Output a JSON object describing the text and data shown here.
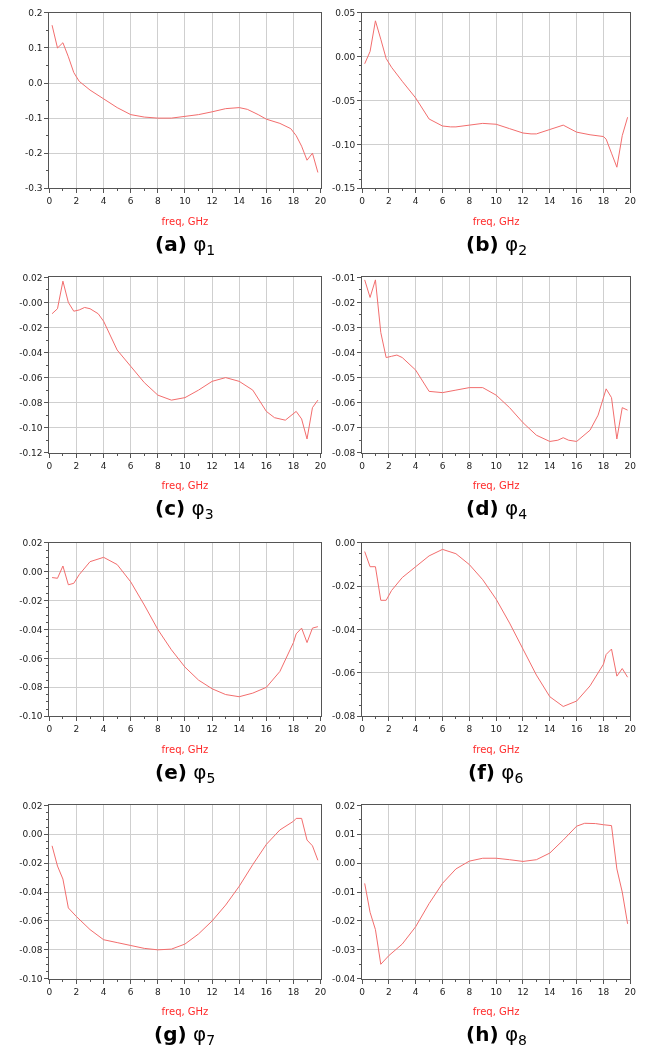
{
  "chart_data": [
    {
      "type": "line",
      "title": "(a) φ$_{1}$",
      "xlabel": "freq, GHz",
      "color": "#f26d6d",
      "grid": true,
      "marker": "none",
      "line_style": "solid",
      "x": [
        0.2,
        0.6,
        1.0,
        1.4,
        1.8,
        2.2,
        3,
        4,
        5,
        6,
        7,
        8,
        9,
        10,
        11,
        12,
        13,
        14,
        14.6,
        15.4,
        16,
        17,
        17.8,
        18.2,
        18.6,
        19.0,
        19.4,
        19.8
      ],
      "values": [
        0.165,
        0.1,
        0.115,
        0.075,
        0.03,
        0.005,
        -0.02,
        -0.045,
        -0.07,
        -0.09,
        -0.097,
        -0.1,
        -0.1,
        -0.095,
        -0.09,
        -0.082,
        -0.073,
        -0.07,
        -0.075,
        -0.09,
        -0.103,
        -0.115,
        -0.13,
        -0.15,
        -0.18,
        -0.22,
        -0.2,
        -0.255
      ],
      "xlim": [
        0,
        20
      ],
      "xticks": [
        0,
        2,
        4,
        6,
        8,
        10,
        12,
        14,
        16,
        18,
        20
      ],
      "ylim": [
        -0.3,
        0.2
      ],
      "yticks": [
        {
          "value": -0.3,
          "label": "-0.3"
        },
        {
          "value": -0.2,
          "label": "-0.2"
        },
        {
          "value": -0.1,
          "label": "-0.1"
        },
        {
          "value": 0,
          "label": "0.0"
        },
        {
          "value": 0.1,
          "label": "0.1"
        },
        {
          "value": 0.2,
          "label": "0.2"
        }
      ]
    },
    {
      "type": "line",
      "title": "(b) φ$_{2}$",
      "xlabel": "freq, GHz",
      "color": "#f26d6d",
      "grid": true,
      "marker": "none",
      "line_style": "solid",
      "x": [
        0.2,
        0.6,
        1.0,
        1.4,
        1.8,
        2.2,
        3,
        4,
        5,
        6,
        6.6,
        7,
        8,
        9,
        10,
        11,
        12,
        12.6,
        13,
        14,
        15,
        16,
        17,
        18,
        18.2,
        18.6,
        19.0,
        19.4,
        19.8
      ],
      "values": [
        -0.008,
        0.006,
        0.041,
        0.02,
        -0.002,
        -0.012,
        -0.028,
        -0.047,
        -0.071,
        -0.079,
        -0.08,
        -0.08,
        -0.078,
        -0.076,
        -0.077,
        -0.082,
        -0.087,
        -0.088,
        -0.088,
        -0.083,
        -0.078,
        -0.086,
        -0.089,
        -0.091,
        -0.094,
        -0.11,
        -0.126,
        -0.09,
        -0.069
      ],
      "xlim": [
        0,
        20
      ],
      "xticks": [
        0,
        2,
        4,
        6,
        8,
        10,
        12,
        14,
        16,
        18,
        20
      ],
      "ylim": [
        -0.15,
        0.05
      ],
      "yticks": [
        {
          "value": -0.15,
          "label": "-0.15"
        },
        {
          "value": -0.1,
          "label": "-0.10"
        },
        {
          "value": -0.05,
          "label": "-0.05"
        },
        {
          "value": 0,
          "label": "0.00"
        },
        {
          "value": 0.05,
          "label": "0.05"
        }
      ]
    },
    {
      "type": "line",
      "title": "(c) φ$_{3}$",
      "xlabel": "freq, GHz",
      "color": "#f26d6d",
      "grid": true,
      "marker": "none",
      "line_style": "solid",
      "x": [
        0.2,
        0.6,
        1.0,
        1.4,
        1.8,
        2.2,
        2.6,
        3,
        3.6,
        4,
        5,
        6,
        7,
        8,
        9,
        10,
        11,
        12,
        13,
        14,
        15,
        16,
        16.6,
        17.4,
        18.2,
        18.6,
        19.0,
        19.4,
        19.8
      ],
      "values": [
        -0.009,
        -0.005,
        0.017,
        0.0,
        -0.007,
        -0.006,
        -0.004,
        -0.005,
        -0.009,
        -0.015,
        -0.038,
        -0.051,
        -0.064,
        -0.074,
        -0.078,
        -0.076,
        -0.07,
        -0.063,
        -0.06,
        -0.063,
        -0.07,
        -0.087,
        -0.092,
        -0.094,
        -0.087,
        -0.093,
        -0.109,
        -0.084,
        -0.078
      ],
      "xlim": [
        0,
        20
      ],
      "xticks": [
        0,
        2,
        4,
        6,
        8,
        10,
        12,
        14,
        16,
        18,
        20
      ],
      "ylim": [
        -0.12,
        0.02
      ],
      "yticks": [
        {
          "value": -0.12,
          "label": "-0.12"
        },
        {
          "value": -0.1,
          "label": "-0.10"
        },
        {
          "value": -0.08,
          "label": "-0.08"
        },
        {
          "value": -0.06,
          "label": "-0.06"
        },
        {
          "value": -0.04,
          "label": "-0.04"
        },
        {
          "value": -0.02,
          "label": "-0.02"
        },
        {
          "value": 0,
          "label": "-0.00"
        },
        {
          "value": 0.02,
          "label": "0.02"
        }
      ]
    },
    {
      "type": "line",
      "title": "(d) φ$_{4}$",
      "xlabel": "freq, GHz",
      "color": "#f26d6d",
      "grid": true,
      "marker": "none",
      "line_style": "solid",
      "x": [
        0.2,
        0.6,
        1.0,
        1.4,
        1.8,
        2.2,
        2.6,
        3,
        4,
        5,
        6,
        7,
        8,
        9,
        10,
        11,
        12,
        13,
        14,
        14.6,
        15,
        15.4,
        16,
        17,
        17.6,
        18.2,
        18.6,
        19.0,
        19.4,
        19.8
      ],
      "values": [
        -0.011,
        -0.018,
        -0.011,
        -0.032,
        -0.042,
        -0.0415,
        -0.041,
        -0.042,
        -0.047,
        -0.0555,
        -0.056,
        -0.055,
        -0.054,
        -0.054,
        -0.057,
        -0.062,
        -0.068,
        -0.073,
        -0.0755,
        -0.075,
        -0.074,
        -0.075,
        -0.0755,
        -0.071,
        -0.065,
        -0.0545,
        -0.058,
        -0.0745,
        -0.062,
        -0.063
      ],
      "xlim": [
        0,
        20
      ],
      "xticks": [
        0,
        2,
        4,
        6,
        8,
        10,
        12,
        14,
        16,
        18,
        20
      ],
      "ylim": [
        -0.08,
        -0.01
      ],
      "yticks": [
        {
          "value": -0.08,
          "label": "-0.08"
        },
        {
          "value": -0.07,
          "label": "-0.07"
        },
        {
          "value": -0.06,
          "label": "-0.06"
        },
        {
          "value": -0.05,
          "label": "-0.05"
        },
        {
          "value": -0.04,
          "label": "-0.04"
        },
        {
          "value": -0.03,
          "label": "-0.03"
        },
        {
          "value": -0.02,
          "label": "-0.02"
        },
        {
          "value": -0.01,
          "label": "-0.01"
        }
      ]
    },
    {
      "type": "line",
      "title": "(e) φ$_{5}$",
      "xlabel": "freq, GHz",
      "color": "#f26d6d",
      "grid": true,
      "marker": "none",
      "line_style": "solid",
      "x": [
        0.2,
        0.6,
        1.0,
        1.4,
        1.8,
        2.2,
        3,
        4,
        5,
        6,
        7,
        8,
        9,
        10,
        11,
        12,
        13,
        14,
        15,
        16,
        17,
        18,
        18.2,
        18.6,
        19.0,
        19.4,
        19.8
      ],
      "values": [
        -0.004,
        -0.0045,
        0.004,
        -0.009,
        -0.008,
        -0.002,
        0.007,
        0.01,
        0.005,
        -0.007,
        -0.023,
        -0.04,
        -0.054,
        -0.066,
        -0.075,
        -0.081,
        -0.085,
        -0.0865,
        -0.084,
        -0.08,
        -0.069,
        -0.049,
        -0.043,
        -0.039,
        -0.049,
        -0.039,
        -0.038
      ],
      "xlim": [
        0,
        20
      ],
      "xticks": [
        0,
        2,
        4,
        6,
        8,
        10,
        12,
        14,
        16,
        18,
        20
      ],
      "ylim": [
        -0.1,
        0.02
      ],
      "yticks": [
        {
          "value": -0.1,
          "label": "-0.10"
        },
        {
          "value": -0.08,
          "label": "-0.08"
        },
        {
          "value": -0.06,
          "label": "-0.06"
        },
        {
          "value": -0.04,
          "label": "-0.04"
        },
        {
          "value": -0.02,
          "label": "-0.02"
        },
        {
          "value": 0,
          "label": "0.00"
        },
        {
          "value": 0.02,
          "label": "0.02"
        }
      ]
    },
    {
      "type": "line",
      "title": "(f) φ$_{6}$",
      "xlabel": "freq, GHz",
      "color": "#f26d6d",
      "grid": true,
      "marker": "none",
      "line_style": "solid",
      "x": [
        0.2,
        0.6,
        1.0,
        1.4,
        1.8,
        2.2,
        3,
        4,
        5,
        6,
        7,
        8,
        9,
        10,
        11,
        12,
        13,
        14,
        15,
        16,
        17,
        18,
        18.2,
        18.6,
        19.0,
        19.4,
        19.8
      ],
      "values": [
        -0.004,
        -0.011,
        -0.011,
        -0.0265,
        -0.0265,
        -0.022,
        -0.016,
        -0.011,
        -0.006,
        -0.003,
        -0.005,
        -0.01,
        -0.017,
        -0.026,
        -0.037,
        -0.049,
        -0.061,
        -0.071,
        -0.0755,
        -0.073,
        -0.066,
        -0.056,
        -0.0515,
        -0.049,
        -0.0615,
        -0.058,
        -0.062
      ],
      "xlim": [
        0,
        20
      ],
      "xticks": [
        0,
        2,
        4,
        6,
        8,
        10,
        12,
        14,
        16,
        18,
        20
      ],
      "ylim": [
        -0.08,
        0
      ],
      "yticks": [
        {
          "value": -0.08,
          "label": "-0.08"
        },
        {
          "value": -0.06,
          "label": "-0.06"
        },
        {
          "value": -0.04,
          "label": "-0.04"
        },
        {
          "value": -0.02,
          "label": "-0.02"
        },
        {
          "value": 0,
          "label": "0.00"
        }
      ]
    },
    {
      "type": "line",
      "title": "(g) φ$_{7}$",
      "xlabel": "freq, GHz",
      "color": "#f26d6d",
      "grid": true,
      "marker": "none",
      "line_style": "solid",
      "x": [
        0.2,
        0.6,
        1.0,
        1.4,
        2,
        3,
        4,
        5,
        6,
        7,
        8,
        9,
        10,
        11,
        12,
        13,
        14,
        15,
        16,
        17,
        18,
        18.2,
        18.6,
        19.0,
        19.4,
        19.8
      ],
      "values": [
        -0.008,
        -0.022,
        -0.031,
        -0.051,
        -0.057,
        -0.066,
        -0.073,
        -0.075,
        -0.077,
        -0.079,
        -0.08,
        -0.0795,
        -0.076,
        -0.069,
        -0.06,
        -0.049,
        -0.036,
        -0.021,
        -0.007,
        0.003,
        0.009,
        0.011,
        0.011,
        -0.004,
        -0.008,
        -0.018
      ],
      "xlim": [
        0,
        20
      ],
      "xticks": [
        0,
        2,
        4,
        6,
        8,
        10,
        12,
        14,
        16,
        18,
        20
      ],
      "ylim": [
        -0.1,
        0.02
      ],
      "yticks": [
        {
          "value": -0.1,
          "label": "-0.10"
        },
        {
          "value": -0.08,
          "label": "-0.08"
        },
        {
          "value": -0.06,
          "label": "-0.06"
        },
        {
          "value": -0.04,
          "label": "-0.04"
        },
        {
          "value": -0.02,
          "label": "-0.02"
        },
        {
          "value": 0,
          "label": "0.00"
        },
        {
          "value": 0.02,
          "label": "0.02"
        }
      ]
    },
    {
      "type": "line",
      "title": "(h) φ$_{8}$",
      "xlabel": "freq, GHz",
      "color": "#f26d6d",
      "grid": true,
      "marker": "none",
      "line_style": "solid",
      "x": [
        0.2,
        0.6,
        1.0,
        1.4,
        2,
        3,
        4,
        5,
        6,
        7,
        8,
        9,
        10,
        11,
        12,
        13,
        14,
        15,
        16,
        16.6,
        17.4,
        18,
        18.6,
        19.0,
        19.4,
        19.8
      ],
      "values": [
        -0.007,
        -0.017,
        -0.023,
        -0.035,
        -0.032,
        -0.028,
        -0.022,
        -0.014,
        -0.007,
        -0.002,
        0.0007,
        0.0017,
        0.0017,
        0.0012,
        0.0006,
        0.0012,
        0.0035,
        0.008,
        0.0128,
        0.0138,
        0.0137,
        0.0133,
        0.013,
        -0.002,
        -0.01,
        -0.021
      ],
      "xlim": [
        0,
        20
      ],
      "xticks": [
        0,
        2,
        4,
        6,
        8,
        10,
        12,
        14,
        16,
        18,
        20
      ],
      "ylim": [
        -0.04,
        0.02
      ],
      "yticks": [
        {
          "value": -0.04,
          "label": "-0.04"
        },
        {
          "value": -0.03,
          "label": "-0.03"
        },
        {
          "value": -0.02,
          "label": "-0.02"
        },
        {
          "value": -0.01,
          "label": "-0.01"
        },
        {
          "value": 0,
          "label": "0.00"
        },
        {
          "value": 0.01,
          "label": "0.01"
        },
        {
          "value": 0.02,
          "label": "0.02"
        }
      ]
    }
  ]
}
